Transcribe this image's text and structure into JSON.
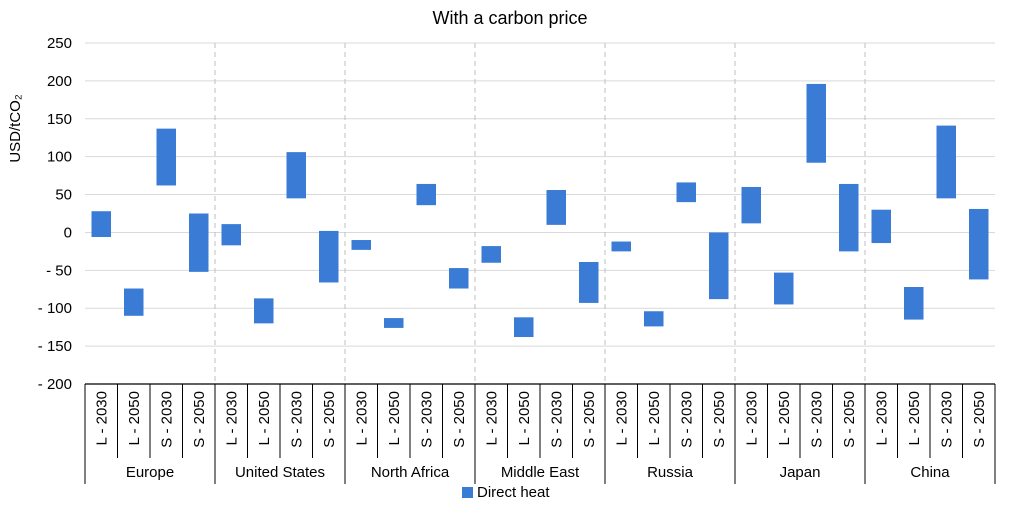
{
  "chart_data": {
    "type": "bar",
    "subtype": "floating-range",
    "title": "With a carbon price",
    "ylabel": "USD/tCO₂",
    "ylim": [
      -200,
      250
    ],
    "yticks": [
      -200,
      -150,
      -100,
      -50,
      0,
      50,
      100,
      150,
      200,
      250
    ],
    "ytick_labels": [
      "- 200",
      "- 150",
      "- 100",
      "- 50",
      "0",
      "50",
      "100",
      "150",
      "200",
      "250"
    ],
    "grid": true,
    "legend_position": "bottom",
    "groups": [
      "Europe",
      "United States",
      "North Africa",
      "Middle East",
      "Russia",
      "Japan",
      "China"
    ],
    "sub_categories": [
      "L - 2030",
      "L - 2050",
      "S - 2030",
      "S - 2050"
    ],
    "series": [
      {
        "name": "Direct heat",
        "color": "#3A7BD5",
        "ranges": [
          [
            [
              -6,
              28
            ],
            [
              -110,
              -74
            ],
            [
              62,
              137
            ],
            [
              -52,
              25
            ]
          ],
          [
            [
              -17,
              11
            ],
            [
              -120,
              -87
            ],
            [
              45,
              106
            ],
            [
              -66,
              2
            ]
          ],
          [
            [
              -23,
              -10
            ],
            [
              -126,
              -113
            ],
            [
              36,
              64
            ],
            [
              -74,
              -47
            ]
          ],
          [
            [
              -40,
              -18
            ],
            [
              -138,
              -112
            ],
            [
              10,
              56
            ],
            [
              -93,
              -39
            ]
          ],
          [
            [
              -25,
              -12
            ],
            [
              -124,
              -104
            ],
            [
              40,
              66
            ],
            [
              -88,
              0
            ]
          ],
          [
            [
              12,
              60
            ],
            [
              -95,
              -53
            ],
            [
              92,
              196
            ],
            [
              -25,
              64
            ]
          ],
          [
            [
              -14,
              30
            ],
            [
              -115,
              -72
            ],
            [
              45,
              141
            ],
            [
              -62,
              31
            ]
          ]
        ]
      }
    ]
  }
}
